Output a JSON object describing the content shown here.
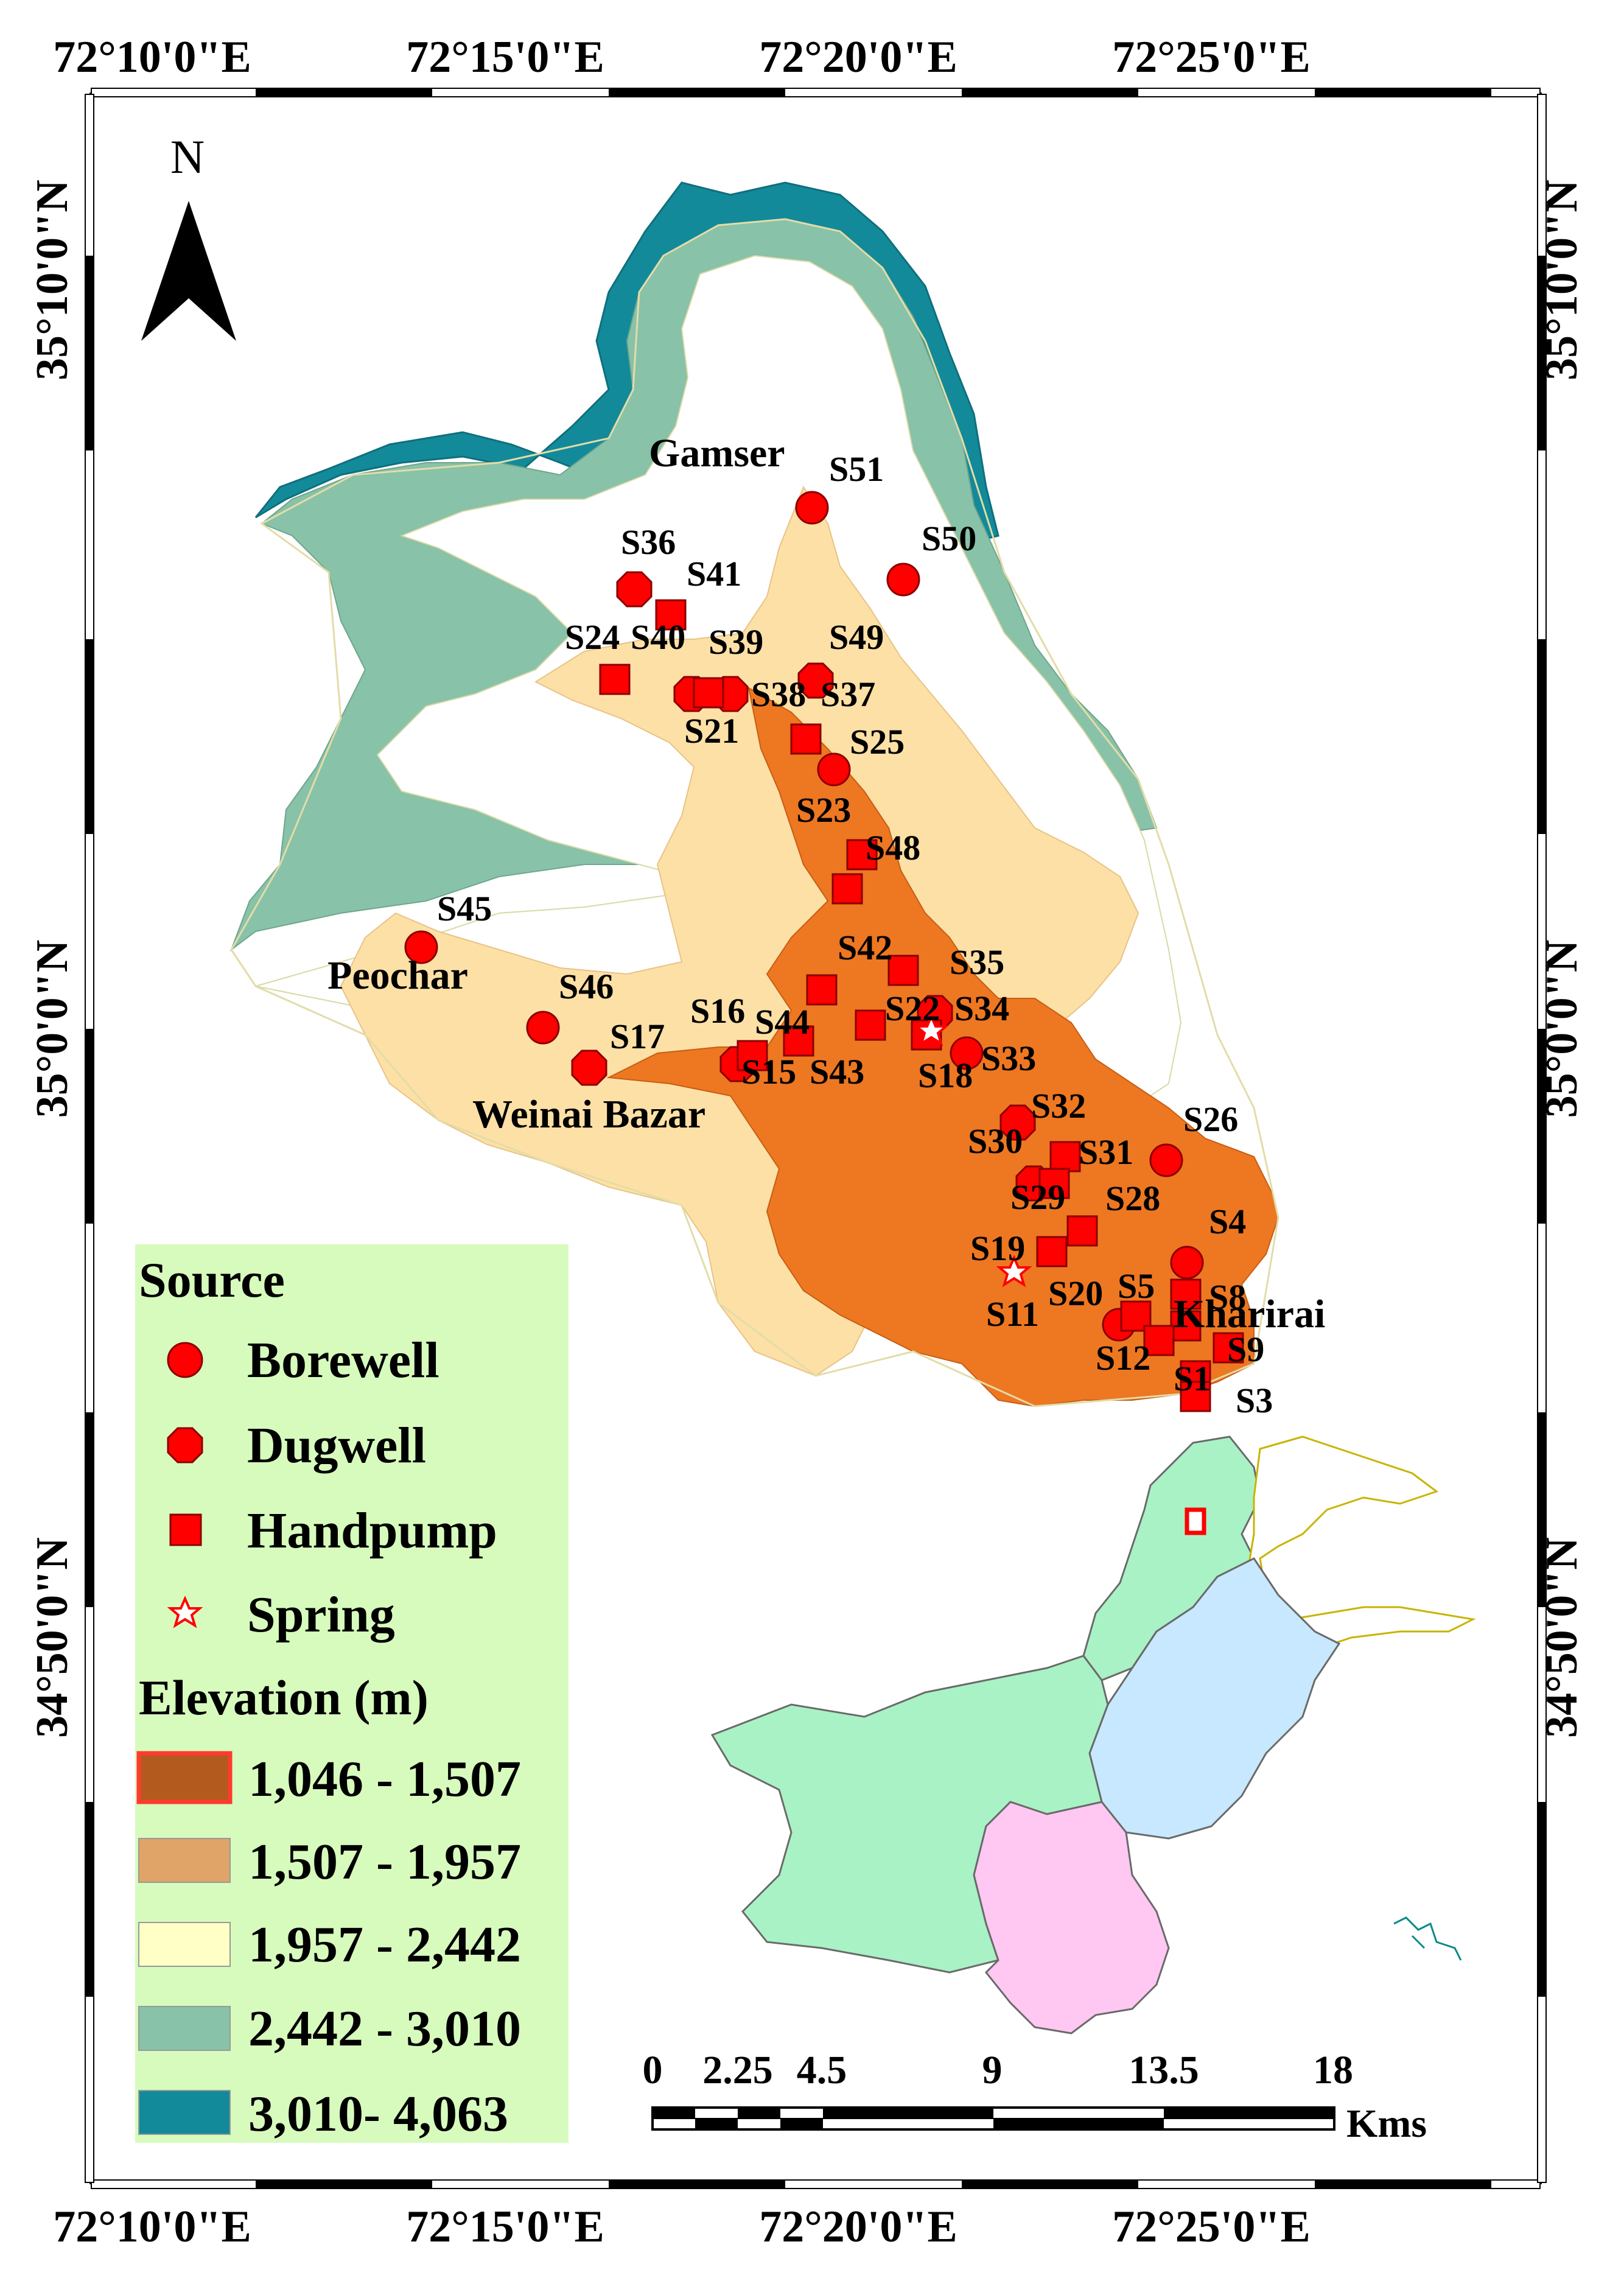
{
  "graticule": {
    "longitudes": [
      "72°10'0\"E",
      "72°15'0\"E",
      "72°20'0\"E",
      "72°25'0\"E"
    ],
    "latitudes": [
      "35°10'0\"N",
      "35°0'0\"N",
      "34°50'0\"N"
    ]
  },
  "north_arrow": {
    "label": "N"
  },
  "places": {
    "gamser": "Gamser",
    "peochar": "Peochar",
    "weinai": "Weinai Bazar",
    "kharirai": "Kharirai"
  },
  "samples": {
    "S1": "S1",
    "S3": "S3",
    "S4": "S4",
    "S5": "S5",
    "S8": "S8",
    "S9": "S9",
    "S11": "S11",
    "S12": "S12",
    "S15": "S15",
    "S16": "S16",
    "S17": "S17",
    "S18": "S18",
    "S19": "S19",
    "S20": "S20",
    "S21": "S21",
    "S22": "S22",
    "S23": "S23",
    "S24": "S24",
    "S25": "S25",
    "S26": "S26",
    "S28": "S28",
    "S29": "S29",
    "S30": "S30",
    "S31": "S31",
    "S32": "S32",
    "S33": "S33",
    "S34": "S34",
    "S35": "S35",
    "S36": "S36",
    "S37": "S37",
    "S38": "S38",
    "S39": "S39",
    "S40": "S40",
    "S41": "S41",
    "S42": "S42",
    "S43": "S43",
    "S44": "S44",
    "S45": "S45",
    "S46": "S46",
    "S48": "S48",
    "S49": "S49",
    "S50": "S50",
    "S51": "S51"
  },
  "legend": {
    "source_title": "Source",
    "sources": [
      {
        "label": "Borewell",
        "symbol": "circle"
      },
      {
        "label": "Dugwell",
        "symbol": "octagon"
      },
      {
        "label": "Handpump",
        "symbol": "square"
      },
      {
        "label": "Spring",
        "symbol": "star"
      }
    ],
    "elevation_title": "Elevation (m)",
    "classes": [
      {
        "label": "1,046 - 1,507",
        "color": "#b35a1f"
      },
      {
        "label": "1,507 - 1,957",
        "color": "#e0a468"
      },
      {
        "label": "1,957 - 2,442",
        "color": "#ffffc6"
      },
      {
        "label": "2,442 - 3,010",
        "color": "#88c2a8"
      },
      {
        "label": "3,010- 4,063",
        "color": "#138a9a"
      }
    ]
  },
  "scale_bar": {
    "ticks": [
      "0",
      "2.25",
      "4.5",
      "9",
      "13.5",
      "18"
    ],
    "unit": "Kms"
  },
  "colors": {
    "marker": "#ff0000",
    "marker_stroke": "#8a0000",
    "legend_bg": "#d7fbbd",
    "inset_kp": "#a9f2c6",
    "inset_punjab": "#c8e8ff",
    "inset_sindh": "#ffc8f2",
    "inset_balochistan": "#a9f2c6"
  }
}
